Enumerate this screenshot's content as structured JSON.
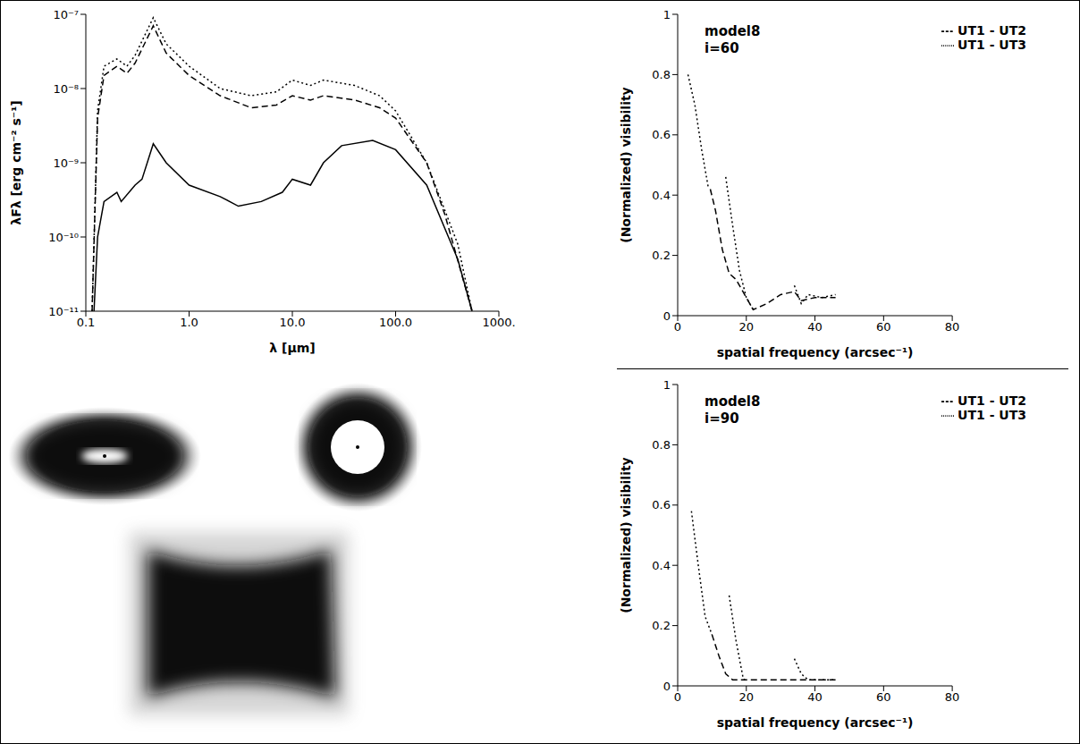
{
  "chart_data": [
    {
      "type": "line",
      "log": true,
      "grid": false,
      "xlabel": "λ [μm]",
      "ylabel": "λFλ [erg cm⁻² s⁻¹]",
      "xlim": [
        0.1,
        1000
      ],
      "ylim": [
        1e-11,
        1e-07
      ],
      "xticks": [
        {
          "value": 0.1,
          "label": "0.1"
        },
        {
          "value": 1,
          "label": "1.0"
        },
        {
          "value": 10,
          "label": "10.0"
        },
        {
          "value": 100,
          "label": "100.0"
        },
        {
          "value": 1000,
          "label": "1000."
        }
      ],
      "yticks": [
        {
          "value": 1e-11,
          "label": "10⁻¹¹"
        },
        {
          "value": 1e-10,
          "label": "10⁻¹⁰"
        },
        {
          "value": 1e-09,
          "label": "10⁻⁹"
        },
        {
          "value": 1e-08,
          "label": "10⁻⁸"
        },
        {
          "value": 1e-07,
          "label": "10⁻⁷"
        }
      ],
      "series": [
        {
          "color": "#000000",
          "line_style": "dotted",
          "x": [
            0.115,
            0.13,
            0.15,
            0.2,
            0.25,
            0.3,
            0.45,
            0.6,
            1,
            2,
            4,
            7,
            10,
            15,
            20,
            40,
            70,
            100,
            200,
            400,
            550
          ],
          "values": [
            1e-11,
            5e-09,
            2e-08,
            2.5e-08,
            2e-08,
            2.8e-08,
            9e-08,
            4e-08,
            2e-08,
            1e-08,
            8e-09,
            9e-09,
            1.3e-08,
            1.1e-08,
            1.3e-08,
            1.1e-08,
            8e-09,
            5e-09,
            1e-09,
            8e-11,
            1e-11
          ]
        },
        {
          "color": "#000000",
          "line_style": "dashed",
          "x": [
            0.115,
            0.13,
            0.15,
            0.2,
            0.25,
            0.3,
            0.45,
            0.6,
            1,
            2,
            4,
            7,
            10,
            15,
            20,
            40,
            70,
            100,
            200,
            300,
            550
          ],
          "values": [
            1e-11,
            4e-09,
            1.5e-08,
            2e-08,
            1.6e-08,
            2.2e-08,
            7e-08,
            3e-08,
            1.5e-08,
            8e-09,
            5.5e-09,
            6e-09,
            8e-09,
            7e-09,
            8e-09,
            7e-09,
            5.5e-09,
            4e-09,
            1e-09,
            2e-10,
            1e-11
          ]
        },
        {
          "color": "#000000",
          "line_style": "solid",
          "x": [
            0.12,
            0.13,
            0.15,
            0.2,
            0.22,
            0.3,
            0.35,
            0.45,
            0.6,
            1,
            2,
            3,
            5,
            8,
            10,
            15,
            20,
            30,
            60,
            100,
            200,
            400,
            550
          ],
          "values": [
            1e-11,
            1e-10,
            3e-10,
            4e-10,
            3e-10,
            5e-10,
            6e-10,
            1.8e-09,
            1e-09,
            5e-10,
            3.5e-10,
            2.6e-10,
            3e-10,
            4e-10,
            6e-10,
            5e-10,
            1e-09,
            1.7e-09,
            2e-09,
            1.5e-09,
            5e-10,
            5e-11,
            1e-11
          ]
        }
      ]
    },
    {
      "type": "line",
      "grid": false,
      "legend": "top-right",
      "annotations": [
        "model8",
        "i=60"
      ],
      "xlabel": "spatial frequency (arcsec⁻¹)",
      "ylabel": "(Normalized) visibility",
      "xlim": [
        0,
        80
      ],
      "ylim": [
        0,
        1
      ],
      "xticks": [
        0,
        20,
        40,
        60,
        80
      ],
      "yticks": [
        0,
        0.2,
        0.4,
        0.6,
        0.8,
        1
      ],
      "series": [
        {
          "name": "UT1 - UT2",
          "color": "#000000",
          "line_style": "dashed",
          "x": [
            9.5,
            11,
            13,
            15,
            17,
            20,
            22,
            26,
            30,
            34,
            36,
            40,
            46
          ],
          "values": [
            0.42,
            0.35,
            0.22,
            0.14,
            0.12,
            0.06,
            0.02,
            0.04,
            0.07,
            0.08,
            0.05,
            0.06,
            0.06
          ]
        },
        {
          "name": "UT1 - UT3",
          "color": "#000000",
          "line_style": "dotted",
          "x": [
            3,
            5,
            7,
            9,
            11,
            14,
            16,
            18,
            20,
            22,
            28,
            34,
            36,
            38,
            42,
            46
          ],
          "values": [
            0.8,
            0.7,
            0.55,
            0.42,
            null,
            0.46,
            0.3,
            0.15,
            0.06,
            0.02,
            null,
            0.1,
            0.04,
            0.07,
            0.06,
            0.07
          ]
        }
      ]
    },
    {
      "type": "line",
      "grid": false,
      "legend": "top-right",
      "annotations": [
        "model8",
        "i=90"
      ],
      "xlabel": "spatial frequency (arcsec⁻¹)",
      "ylabel": "(Normalized) visibility",
      "xlim": [
        0,
        80
      ],
      "ylim": [
        0,
        1
      ],
      "xticks": [
        0,
        20,
        40,
        60,
        80
      ],
      "yticks": [
        0,
        0.2,
        0.4,
        0.6,
        0.8,
        1
      ],
      "series": [
        {
          "name": "UT1 - UT2",
          "color": "#000000",
          "line_style": "dashed",
          "x": [
            10,
            12,
            14,
            16,
            20,
            25,
            30,
            35,
            40,
            46
          ],
          "values": [
            0.17,
            0.1,
            0.04,
            0.02,
            0.02,
            0.02,
            0.02,
            0.02,
            0.02,
            0.02
          ]
        },
        {
          "name": "UT1 - UT3",
          "color": "#000000",
          "line_style": "dotted",
          "x": [
            4,
            6,
            8,
            10,
            12,
            15,
            17,
            19,
            20,
            28,
            34,
            36,
            38,
            42,
            46
          ],
          "values": [
            0.58,
            0.4,
            0.23,
            0.17,
            null,
            0.3,
            0.15,
            0.03,
            0.01,
            null,
            0.09,
            0.04,
            0.02,
            0.02,
            0.02
          ]
        }
      ]
    }
  ]
}
